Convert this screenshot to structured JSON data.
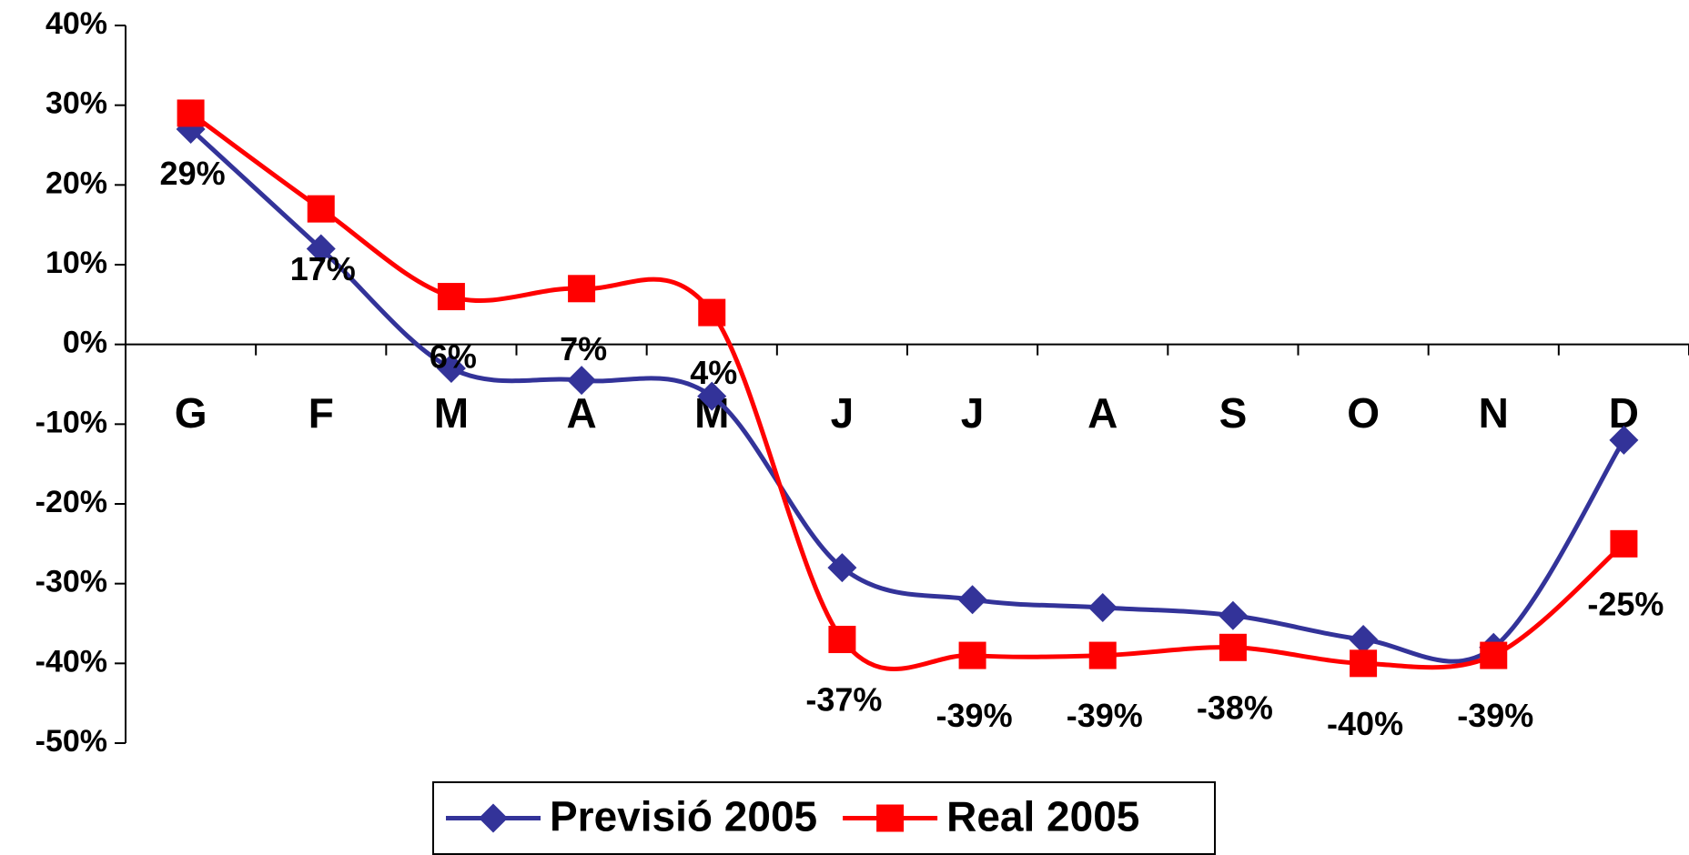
{
  "chart_data": {
    "type": "line",
    "categories": [
      "G",
      "F",
      "M",
      "A",
      "M",
      "J",
      "J",
      "A",
      "S",
      "O",
      "N",
      "D"
    ],
    "series": [
      {
        "name": "Previsió 2005",
        "color": "#333399",
        "marker": "diamond",
        "values": [
          27,
          12,
          -3,
          -4.5,
          -6.5,
          -28,
          -32,
          -33,
          -34,
          -37,
          -38,
          -12
        ]
      },
      {
        "name": "Real 2005",
        "color": "#ff0000",
        "marker": "square",
        "values": [
          29,
          17,
          6,
          7,
          4,
          -37,
          -39,
          -39,
          -38,
          -40,
          -39,
          -25
        ],
        "value_labels": [
          "29%",
          "17%",
          "6%",
          "7%",
          "4%",
          "-37%",
          "-39%",
          "-39%",
          "-38%",
          "-40%",
          "-39%",
          "-25%"
        ]
      }
    ],
    "ylim": [
      -50,
      40
    ],
    "yticks": [
      {
        "value": -50,
        "label": "-50%"
      },
      {
        "value": -40,
        "label": "-40%"
      },
      {
        "value": -30,
        "label": "-30%"
      },
      {
        "value": -20,
        "label": "-20%"
      },
      {
        "value": -10,
        "label": "-10%"
      },
      {
        "value": 0,
        "label": "0%"
      },
      {
        "value": 10,
        "label": "10%"
      },
      {
        "value": 20,
        "label": "20%"
      },
      {
        "value": 30,
        "label": "30%"
      },
      {
        "value": 40,
        "label": "40%"
      }
    ],
    "smooth": true,
    "legend": "bottom"
  }
}
